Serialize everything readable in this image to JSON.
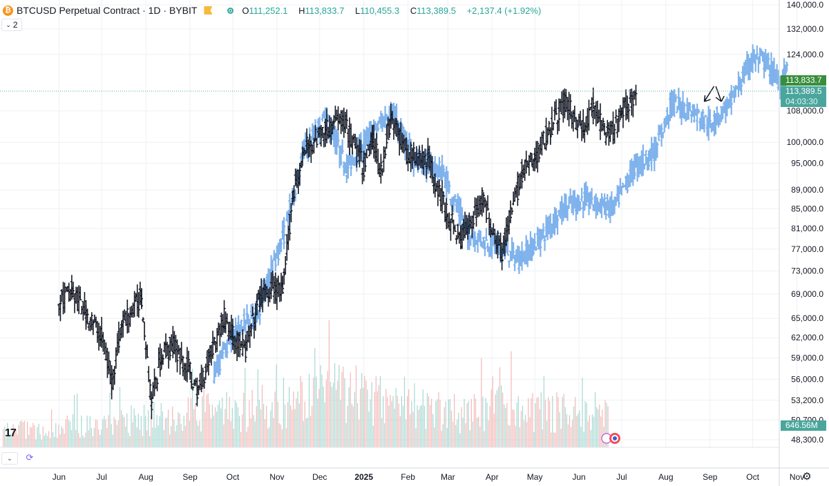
{
  "header": {
    "title": "BTCUSD Perpetual Contract · 1D · BYBIT",
    "open_label": "O",
    "open": "111,252.1",
    "high_label": "H",
    "high": "113,833.7",
    "low_label": "L",
    "low": "110,455.3",
    "close_label": "C",
    "close": "113,389.5",
    "change": "+2,137.4 (+1.92%)",
    "coin_icon": "bitcoin-icon",
    "indicator_count": "2"
  },
  "price_tags": {
    "high": "113,833.7",
    "last": "113,389.5",
    "countdown": "04:03:30",
    "volume": "646.56M"
  },
  "colors": {
    "actual": "#131722",
    "projection": "#7fb2ec",
    "high_tag": "#388e3c",
    "last_tag": "#4aa69c",
    "volume_up": "#a6d8d2",
    "volume_down": "#f4b8b6",
    "grid": "#eef0f3"
  },
  "chart_data": {
    "type": "line",
    "ylabel": "",
    "y_scale": "log",
    "ylim": [
      47000,
      142000
    ],
    "y_ticks": [
      "140,000.0",
      "132,000.0",
      "124,000.0",
      "108,000.0",
      "100,000.0",
      "95,000.0",
      "89,000.0",
      "85,000.0",
      "81,000.0",
      "77,000.0",
      "73,000.0",
      "69,000.0",
      "65,000.0",
      "62,000.0",
      "59,000.0",
      "56,000.0",
      "53,200.0",
      "50,700.0",
      "48,300.0"
    ],
    "x_ticks": [
      "Jun",
      "Jul",
      "Aug",
      "Sep",
      "Oct",
      "Nov",
      "Dec",
      "2025",
      "Feb",
      "Mar",
      "Apr",
      "May",
      "Jun",
      "Jul",
      "Aug",
      "Sep",
      "Oct",
      "Nov"
    ],
    "grid": true,
    "series": [
      {
        "name": "",
        "style": "black daily bars (actual BTCUSD price)",
        "x": [
          "2024-06-01",
          "2024-06-10",
          "2024-06-20",
          "2024-07-01",
          "2024-07-08",
          "2024-07-15",
          "2024-07-29",
          "2024-08-05",
          "2024-08-12",
          "2024-08-20",
          "2024-09-01",
          "2024-09-06",
          "2024-09-15",
          "2024-09-25",
          "2024-10-01",
          "2024-10-10",
          "2024-10-20",
          "2024-10-31",
          "2024-11-05",
          "2024-11-12",
          "2024-11-22",
          "2024-12-05",
          "2024-12-17",
          "2025-01-01",
          "2025-01-07",
          "2025-01-13",
          "2025-01-20",
          "2025-02-01",
          "2025-02-15",
          "2025-02-28",
          "2025-03-10",
          "2025-03-25",
          "2025-04-08",
          "2025-04-22",
          "2025-05-01",
          "2025-05-12",
          "2025-05-22",
          "2025-06-05",
          "2025-06-11",
          "2025-06-22",
          "2025-07-01",
          "2025-07-11"
        ],
        "values": [
          67500,
          69500,
          66000,
          62000,
          56000,
          64000,
          68500,
          53000,
          59500,
          61000,
          57000,
          54000,
          59500,
          65000,
          62500,
          60000,
          68500,
          70000,
          69000,
          88000,
          99000,
          103000,
          106000,
          94000,
          101000,
          93500,
          106000,
          97000,
          96000,
          84000,
          79000,
          87000,
          76500,
          93000,
          96000,
          104000,
          110000,
          103000,
          109000,
          101000,
          107000,
          113400
        ]
      },
      {
        "name": "",
        "style": "light blue daily bars (projection / overlay)",
        "x": [
          "2024-09-18",
          "2024-10-01",
          "2024-10-20",
          "2024-11-06",
          "2024-11-20",
          "2024-12-05",
          "2024-12-20",
          "2025-01-02",
          "2025-01-20",
          "2025-02-05",
          "2025-02-25",
          "2025-03-15",
          "2025-04-05",
          "2025-04-20",
          "2025-05-05",
          "2025-05-20",
          "2025-06-05",
          "2025-06-25",
          "2025-07-10",
          "2025-07-25",
          "2025-08-05",
          "2025-08-20",
          "2025-09-01",
          "2025-09-15",
          "2025-10-01",
          "2025-10-10",
          "2025-10-20",
          "2025-10-25"
        ],
        "values": [
          57000,
          62000,
          67000,
          80000,
          98000,
          106000,
          94000,
          100000,
          108000,
          96000,
          93000,
          80000,
          77500,
          75000,
          79000,
          85000,
          87000,
          85000,
          94000,
          98000,
          110000,
          108000,
          104500,
          110000,
          123000,
          121500,
          116000,
          119000
        ]
      },
      {
        "name": "",
        "style": "volume histogram (up teal / down red)",
        "x": [
          "2024-06-01",
          "2024-11-12",
          "2024-12-05",
          "2025-01-20",
          "2025-03-05",
          "2025-04-08",
          "2025-06-22"
        ],
        "values": [
          0.35,
          0.75,
          1.0,
          0.85,
          0.6,
          0.7,
          0.55
        ]
      }
    ],
    "annotations": [
      {
        "type": "arrow",
        "x": "2025-08-28",
        "y": 110500
      },
      {
        "type": "arrow",
        "x": "2025-09-08",
        "y": 110500
      }
    ],
    "reference_line": 113389.5
  }
}
